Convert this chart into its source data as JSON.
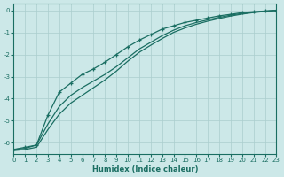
{
  "xlabel": "Humidex (Indice chaleur)",
  "xlim": [
    0,
    23
  ],
  "ylim": [
    -6.5,
    0.3
  ],
  "xticks": [
    0,
    1,
    2,
    3,
    4,
    5,
    6,
    7,
    8,
    9,
    10,
    11,
    12,
    13,
    14,
    15,
    16,
    17,
    18,
    19,
    20,
    21,
    22,
    23
  ],
  "yticks": [
    0,
    -1,
    -2,
    -3,
    -4,
    -5,
    -6
  ],
  "bg_color": "#cce8e8",
  "grid_color": "#aacece",
  "line_color": "#1a6e62",
  "line1_x": [
    0,
    1,
    2,
    3,
    4,
    5,
    6,
    7,
    8,
    9,
    10,
    11,
    12,
    13,
    14,
    15,
    16,
    17,
    18,
    19,
    20,
    21,
    22,
    23
  ],
  "line1_y": [
    -6.3,
    -6.2,
    -6.1,
    -4.75,
    -3.7,
    -3.3,
    -2.9,
    -2.65,
    -2.35,
    -2.0,
    -1.65,
    -1.35,
    -1.1,
    -0.85,
    -0.7,
    -0.55,
    -0.45,
    -0.35,
    -0.25,
    -0.18,
    -0.1,
    -0.06,
    -0.03,
    0.0
  ],
  "line2_x": [
    0,
    1,
    2,
    3,
    4,
    5,
    6,
    7,
    8,
    9,
    10,
    11,
    12,
    13,
    14,
    15,
    16,
    17,
    18,
    19,
    20,
    21,
    22,
    23
  ],
  "line2_y": [
    -6.3,
    -6.25,
    -6.1,
    -5.15,
    -4.35,
    -3.85,
    -3.5,
    -3.2,
    -2.9,
    -2.55,
    -2.15,
    -1.75,
    -1.45,
    -1.15,
    -0.9,
    -0.7,
    -0.55,
    -0.43,
    -0.32,
    -0.22,
    -0.14,
    -0.09,
    -0.04,
    0.0
  ],
  "line3_x": [
    0,
    1,
    2,
    3,
    4,
    5,
    6,
    7,
    8,
    9,
    10,
    11,
    12,
    13,
    14,
    15,
    16,
    17,
    18,
    19,
    20,
    21,
    22,
    23
  ],
  "line3_y": [
    -6.35,
    -6.3,
    -6.2,
    -5.4,
    -4.7,
    -4.2,
    -3.85,
    -3.5,
    -3.15,
    -2.75,
    -2.3,
    -1.9,
    -1.58,
    -1.28,
    -1.0,
    -0.8,
    -0.63,
    -0.49,
    -0.37,
    -0.26,
    -0.17,
    -0.1,
    -0.05,
    0.0
  ]
}
